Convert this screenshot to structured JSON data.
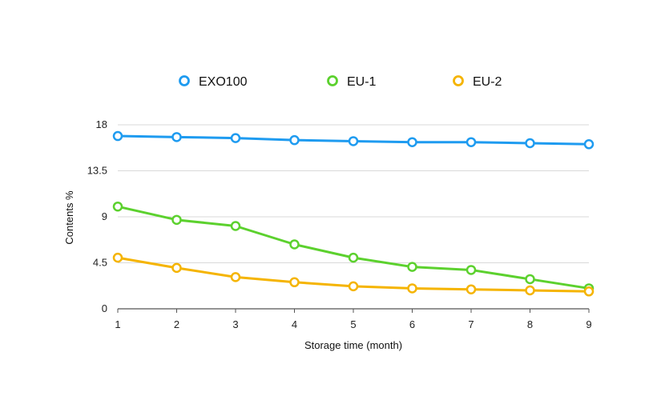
{
  "chart_data": {
    "type": "line",
    "title": "",
    "xlabel": "Storage time (month)",
    "ylabel": "Contents %",
    "x": [
      1,
      2,
      3,
      4,
      5,
      6,
      7,
      8,
      9
    ],
    "ylim": [
      0,
      18
    ],
    "yticks": [
      "0",
      "4.5",
      "9",
      "13.5",
      "18"
    ],
    "xticks": [
      "1",
      "2",
      "3",
      "4",
      "5",
      "6",
      "7",
      "8",
      "9"
    ],
    "grid": "horizontal",
    "legend_position": "top",
    "series": [
      {
        "name": "EXO100",
        "color": "#1e9bf0",
        "values": [
          16.9,
          16.8,
          16.7,
          16.5,
          16.4,
          16.3,
          16.3,
          16.2,
          16.1
        ]
      },
      {
        "name": "EU-1",
        "color": "#5cd12e",
        "values": [
          10.0,
          8.7,
          8.1,
          6.3,
          5.0,
          4.1,
          3.8,
          2.9,
          2.0
        ]
      },
      {
        "name": "EU-2",
        "color": "#f5b400",
        "values": [
          5.0,
          4.0,
          3.1,
          2.6,
          2.2,
          2.0,
          1.9,
          1.8,
          1.7
        ]
      }
    ]
  }
}
